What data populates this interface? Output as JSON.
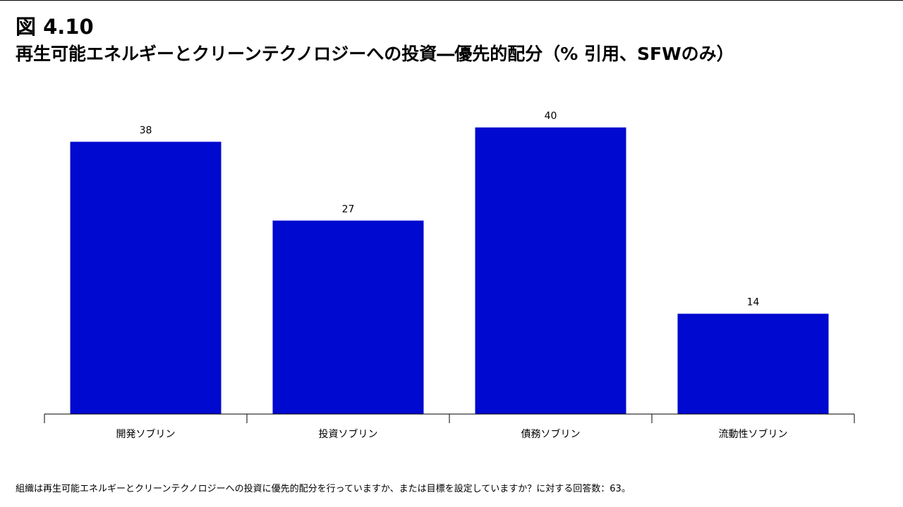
{
  "figure": {
    "number": "図 4.10",
    "title": "再生可能エネルギーとクリーンテクノロジーへの投資―優先的配分（% 引用、SFWのみ）"
  },
  "chart_data": {
    "type": "bar",
    "categories": [
      "開発ソブリン",
      "投資ソブリン",
      "債務ソブリン",
      "流動性ソブリン"
    ],
    "values": [
      38,
      27,
      40,
      14
    ],
    "data_labels": [
      "38",
      "27",
      "40",
      "14"
    ],
    "ylim": [
      0,
      40
    ],
    "grid": false,
    "legend": "none",
    "bar_color": "#0009CF",
    "xlabel": "",
    "ylabel": ""
  },
  "footnote": "組織は再生可能エネルギーとクリーンテクノロジーへの投資に優先的配分を行っていますか、または目標を設定していますか？に対する回答数：63。"
}
